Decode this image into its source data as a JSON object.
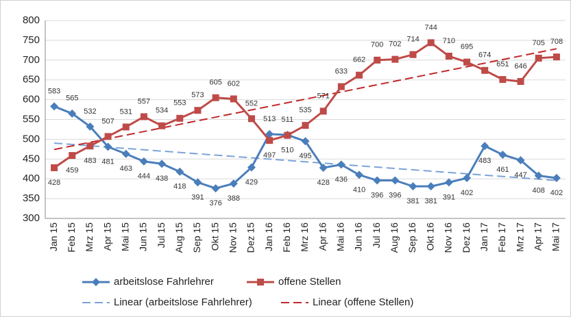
{
  "chart_data": {
    "type": "line",
    "categories": [
      "Jan 15",
      "Feb 15",
      "Mrz 15",
      "Apr 15",
      "Mai 15",
      "Jun 15",
      "Jul 15",
      "Aug 15",
      "Sep 15",
      "Okt 15",
      "Nov 15",
      "Dez 15",
      "Jan 16",
      "Feb 16",
      "Mrz 16",
      "Apr 16",
      "Mai 16",
      "Jun 16",
      "Jul 16",
      "Aug 16",
      "Sep 16",
      "Okt 16",
      "Nov 16",
      "Dez 16",
      "Jan 17",
      "Feb 17",
      "Mrz 17",
      "Apr 17",
      "Mai 17"
    ],
    "series": [
      {
        "name": "arbeitslose Fahrlehrer",
        "color": "#4a7ebb",
        "marker": "diamond",
        "values": [
          583,
          565,
          532,
          481,
          463,
          444,
          438,
          418,
          391,
          376,
          388,
          429,
          513,
          511,
          495,
          428,
          436,
          410,
          396,
          396,
          381,
          381,
          391,
          402,
          483,
          461,
          447,
          408,
          402
        ]
      },
      {
        "name": "offene Stellen",
        "color": "#be4b48",
        "marker": "square",
        "values": [
          428,
          459,
          483,
          507,
          531,
          557,
          534,
          553,
          573,
          605,
          602,
          552,
          497,
          510,
          535,
          571,
          633,
          662,
          700,
          702,
          714,
          744,
          710,
          695,
          674,
          651,
          646,
          705,
          708
        ]
      }
    ],
    "trendlines": [
      {
        "name": "Linear (arbeitslose Fahrlehrer)",
        "color": "#7ba3d6",
        "series": "arbeitslose Fahrlehrer"
      },
      {
        "name": "Linear (offene Stellen)",
        "color": "#c0282a",
        "series": "offene Stellen"
      }
    ],
    "ylim": [
      300,
      800
    ],
    "yticks": [
      300,
      350,
      400,
      450,
      500,
      550,
      600,
      650,
      700,
      750,
      800
    ],
    "grid": true
  }
}
